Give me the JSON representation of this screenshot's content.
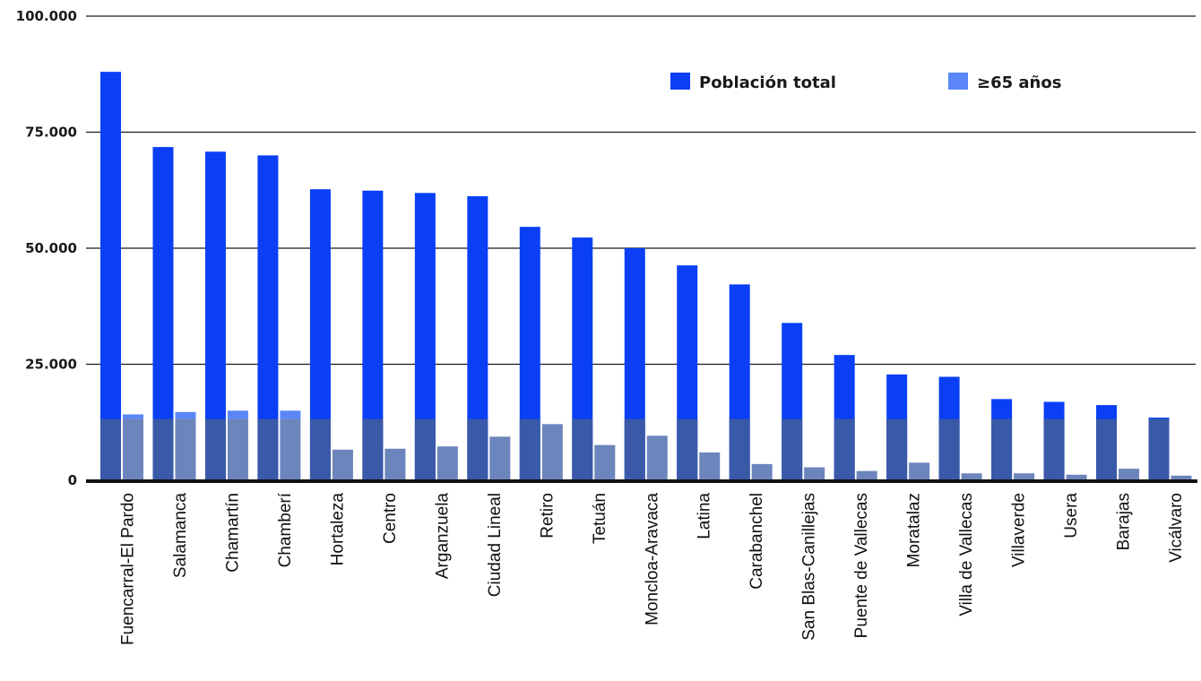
{
  "chart_data": {
    "type": "bar",
    "categories": [
      "Fuencarral-El Pardo",
      "Salamanca",
      "Chamartín",
      "Chamberí",
      "Hortaleza",
      "Centro",
      "Arganzuela",
      "Ciudad Lineal",
      "Retiro",
      "Tetuán",
      "Moncloa-Aravaca",
      "Latina",
      "Carabanchel",
      "San Blas-Canillejas",
      "Puente de Vallecas",
      "Moratalaz",
      "Villa de Vallecas",
      "Villaverde",
      "Usera",
      "Barajas",
      "Vicálvaro"
    ],
    "series": [
      {
        "name": "Población total",
        "values": [
          88000,
          71800,
          70800,
          70000,
          62700,
          62400,
          61900,
          61200,
          54600,
          52300,
          50000,
          46300,
          42200,
          33900,
          27000,
          22800,
          22300,
          17500,
          16900,
          16200,
          13500
        ]
      },
      {
        "name": "≥65 años",
        "values": [
          14200,
          14700,
          15000,
          15000,
          6600,
          6800,
          7300,
          9400,
          12100,
          7600,
          9600,
          6000,
          3500,
          2800,
          2000,
          3800,
          1500,
          1500,
          1200,
          2500,
          1000
        ]
      }
    ],
    "overlay_band": 13200,
    "yticks": [
      "0",
      "25.000",
      "50.000",
      "75.000",
      "100.000"
    ],
    "ylim": [
      0,
      100000
    ],
    "grid": true,
    "legend_position": "top-right",
    "colors": {
      "total": "#0a3ff5",
      "total_band": "#3a59a8",
      "senior": "#5a86f7",
      "senior_band": "#6d85bd",
      "axis": "#111111",
      "grid": "#1a1a1a"
    }
  }
}
